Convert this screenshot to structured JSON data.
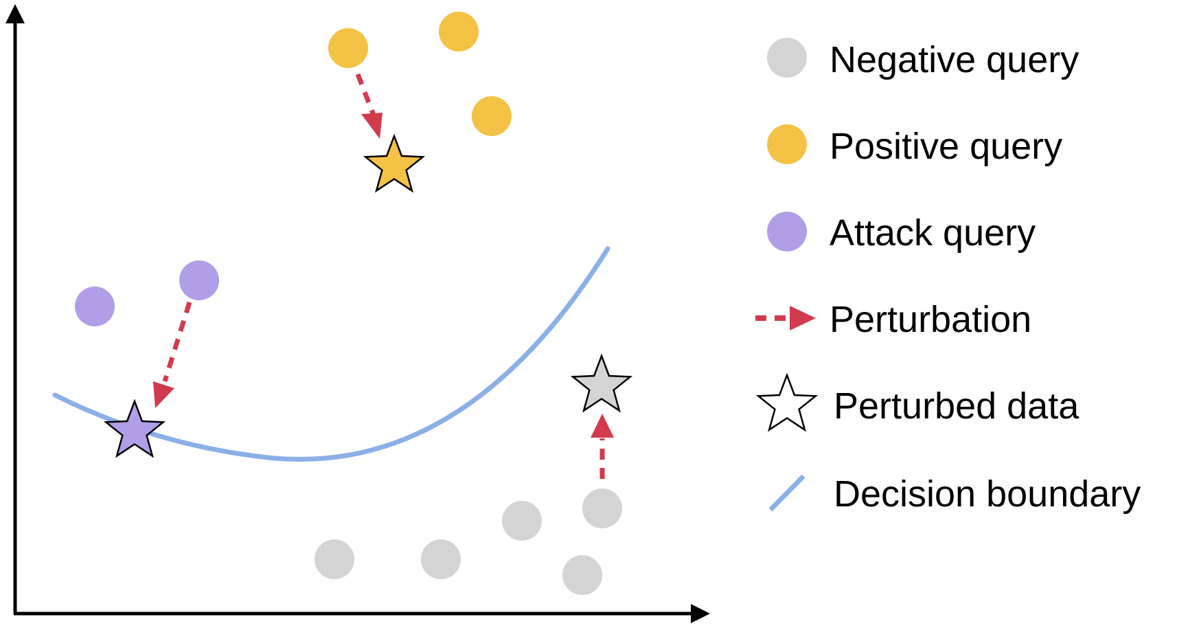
{
  "colors": {
    "negative": "#d4d4d4",
    "positive": "#f4c245",
    "attack": "#b19ee8",
    "perturbation": "#d23a4e",
    "boundary": "#8bb0e8",
    "axis": "#000000",
    "star_outline": "#000000"
  },
  "legend": {
    "negative_query": "Negative query",
    "positive_query": "Positive query",
    "attack_query": "Attack query",
    "perturbation": "Perturbation",
    "perturbed_data": "Perturbed data",
    "decision_boundary": "Decision boundary"
  }
}
